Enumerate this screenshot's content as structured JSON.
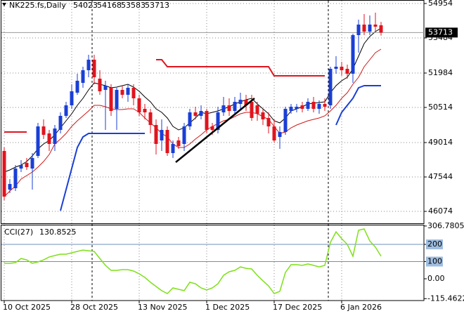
{
  "chart_data": {
    "type": "candlestick",
    "symbol": "NK225.fs,Daily",
    "categories": [
      "10 Oct 2025",
      null,
      null,
      null,
      null,
      null,
      null,
      null,
      null,
      null,
      null,
      null,
      "28 Oct 2025",
      null,
      null,
      null,
      null,
      null,
      null,
      null,
      null,
      null,
      null,
      null,
      "13 Nov 2025",
      null,
      null,
      null,
      null,
      null,
      null,
      null,
      null,
      null,
      null,
      null,
      "1 Dec 2025",
      null,
      null,
      null,
      null,
      null,
      null,
      null,
      null,
      null,
      null,
      null,
      "17 Dec 2025",
      null,
      null,
      null,
      null,
      null,
      null,
      null,
      null,
      null,
      null,
      null,
      "6 Jan 2026",
      null,
      null,
      null,
      null,
      null,
      null,
      null
    ],
    "open": [
      48654,
      47004,
      47064,
      47904,
      48144,
      47904,
      48444,
      49704,
      49404,
      48954,
      49554,
      50154,
      50604,
      51144,
      51564,
      52104,
      52554,
      51744,
      51264,
      51354,
      50454,
      51264,
      51054,
      51354,
      50904,
      50454,
      50304,
      49764,
      49104,
      49554,
      48564,
      49104,
      48954,
      49704,
      50304,
      50154,
      50364,
      49704,
      49554,
      50304,
      50604,
      50364,
      50664,
      50844,
      50754,
      50604,
      50304,
      50064,
      49704,
      49254,
      49464,
      50364,
      50454,
      50604,
      50454,
      50754,
      50454,
      50664,
      50604,
      52164,
      52254,
      52164,
      51954,
      53604,
      54054,
      53754,
      54054,
      54023
    ],
    "high": [
      48804,
      47454,
      48054,
      48264,
      48354,
      48564,
      49854,
      50004,
      49554,
      49764,
      50304,
      50754,
      51504,
      51954,
      52254,
      52764,
      52764,
      52104,
      51654,
      51504,
      51354,
      51444,
      51504,
      51504,
      51054,
      50664,
      50454,
      50004,
      50004,
      49704,
      49104,
      49254,
      49854,
      50454,
      50544,
      50604,
      50454,
      49854,
      50544,
      50964,
      50904,
      50964,
      51144,
      51054,
      51054,
      50754,
      50454,
      50304,
      50004,
      49704,
      50544,
      50664,
      50664,
      50754,
      50904,
      50964,
      50814,
      50904,
      52254,
      52704,
      52464,
      52344,
      53664,
      54264,
      54504,
      54444,
      54564,
      54168
    ],
    "low": [
      46554,
      46854,
      46944,
      47754,
      47844,
      47004,
      48354,
      49164,
      48654,
      48654,
      49404,
      50064,
      50454,
      51054,
      51354,
      51804,
      51504,
      51054,
      49554,
      50154,
      49554,
      50904,
      50754,
      50604,
      50154,
      50004,
      49404,
      48504,
      48654,
      48444,
      48354,
      48744,
      48654,
      49554,
      50004,
      50004,
      49404,
      49344,
      49404,
      50154,
      50154,
      50244,
      50454,
      50364,
      49944,
      49944,
      49764,
      49404,
      49014,
      48744,
      49344,
      50244,
      50304,
      50304,
      50364,
      50304,
      50244,
      50364,
      50454,
      51954,
      51864,
      51744,
      51564,
      52854,
      53604,
      53604,
      53754,
      53583
    ],
    "close": [
      46704,
      47244,
      47904,
      48054,
      47964,
      48354,
      49704,
      49344,
      48954,
      49614,
      50154,
      50604,
      51204,
      51654,
      52104,
      52554,
      51804,
      51204,
      51444,
      50364,
      51264,
      51054,
      51354,
      50904,
      50304,
      50304,
      49764,
      48954,
      49554,
      48564,
      48954,
      48864,
      49704,
      50304,
      50154,
      50364,
      49554,
      49554,
      50304,
      50604,
      50364,
      50754,
      50844,
      50604,
      50064,
      50244,
      50004,
      49704,
      49104,
      49464,
      50454,
      50544,
      50544,
      50454,
      50754,
      50454,
      50664,
      50544,
      52164,
      52254,
      52104,
      51954,
      53604,
      54054,
      53754,
      54054,
      53964,
      53713
    ],
    "up_color": "#1a3fd6",
    "down_color": "#e0141e",
    "lines": [
      {
        "color": "#000000",
        "values": [
          47754,
          47844,
          47964,
          48054,
          48204,
          48444,
          48744,
          48954,
          49104,
          49344,
          49644,
          49944,
          50244,
          50604,
          50904,
          51264,
          51564,
          51504,
          51444,
          51354,
          51384,
          51444,
          51504,
          51384,
          51204,
          50964,
          50754,
          50454,
          50304,
          50064,
          49704,
          49554,
          49644,
          49854,
          50064,
          50304,
          50244,
          50304,
          50364,
          50454,
          50544,
          50664,
          50754,
          50844,
          50904,
          50664,
          50454,
          50244,
          49944,
          49854,
          50064,
          50364,
          50454,
          50544,
          50664,
          50694,
          50724,
          50754,
          51144,
          51444,
          51654,
          51804,
          52164,
          52704,
          53244,
          53544,
          53754,
          53904
        ]
      },
      {
        "color": "#d01818",
        "values": [
          46704,
          46944,
          47154,
          47454,
          47604,
          47754,
          47964,
          48204,
          48504,
          48954,
          49164,
          49404,
          49704,
          49944,
          50154,
          50364,
          50604,
          50604,
          50544,
          50454,
          50424,
          50424,
          50454,
          50454,
          50304,
          50064,
          49854,
          49644,
          49404,
          49254,
          48954,
          48804,
          48804,
          48954,
          49164,
          49344,
          49554,
          49704,
          49824,
          49944,
          50004,
          50124,
          50244,
          50304,
          50304,
          50244,
          50124,
          50004,
          49704,
          49404,
          49464,
          49644,
          49764,
          49854,
          49944,
          50004,
          50064,
          50154,
          50364,
          50604,
          50904,
          51144,
          51504,
          51804,
          52254,
          52554,
          52854,
          53004
        ]
      },
      {
        "color": "#e0141e",
        "width": 2,
        "values": [
          49464,
          49464,
          49464,
          49464,
          49464,
          null,
          null,
          null,
          null,
          null,
          null,
          null,
          null,
          null,
          null,
          null,
          null,
          null,
          null,
          null,
          null,
          null,
          null,
          null,
          null,
          null,
          null,
          52554,
          52554,
          52254,
          52254,
          52254,
          52254,
          52254,
          52254,
          52254,
          52254,
          52254,
          52254,
          52254,
          52254,
          52254,
          52254,
          52254,
          52254,
          52254,
          52254,
          52254,
          51864,
          51864,
          51864,
          51864,
          51864,
          51864,
          51864,
          51864,
          51864,
          51864,
          null,
          null,
          null,
          null,
          null,
          null,
          null,
          null,
          null,
          null
        ]
      },
      {
        "color": "#1a3fd6",
        "width": 2,
        "values": [
          null,
          null,
          null,
          null,
          null,
          null,
          null,
          null,
          null,
          null,
          46104,
          47004,
          47904,
          48804,
          49254,
          49404,
          49404,
          49404,
          49404,
          49404,
          49404,
          49404,
          49404,
          49404,
          49404,
          49404,
          null,
          null,
          null,
          null,
          null,
          null,
          null,
          null,
          null,
          null,
          null,
          null,
          null,
          null,
          null,
          null,
          null,
          null,
          null,
          null,
          null,
          null,
          null,
          null,
          null,
          null,
          null,
          null,
          null,
          null,
          null,
          null,
          null,
          49764,
          50304,
          50604,
          50904,
          51354,
          51444,
          51444,
          51444,
          51444
        ]
      }
    ],
    "ylim": [
      45564,
      55104
    ],
    "yticks": [
      54954,
      53484,
      51984,
      50514,
      49014,
      47544,
      46074
    ],
    "grid": true,
    "cci": {
      "title": "CCI(27)",
      "color": "#7fe01a",
      "values": [
        90,
        90,
        94,
        118,
        110,
        90,
        98,
        110,
        127,
        135,
        143,
        143,
        151,
        159,
        167,
        163,
        159,
        118,
        78,
        49,
        49,
        53,
        53,
        45,
        29,
        8,
        -20,
        -45,
        -69,
        -86,
        -53,
        -61,
        -69,
        -20,
        -29,
        -53,
        -65,
        -53,
        -29,
        20,
        41,
        49,
        69,
        61,
        57,
        20,
        -12,
        -41,
        -86,
        -73,
        37,
        82,
        82,
        78,
        86,
        78,
        69,
        78,
        212,
        273,
        233,
        200,
        131,
        282,
        290,
        220,
        184,
        130.8525
      ],
      "ylim": [
        -126.5,
        314.3
      ],
      "yticks": [
        306.7805,
        200,
        100,
        {
          "value": 0,
          "label": "0.00"
        },
        -115.4622
      ],
      "levels": [
        200,
        100
      ]
    }
  }
}
